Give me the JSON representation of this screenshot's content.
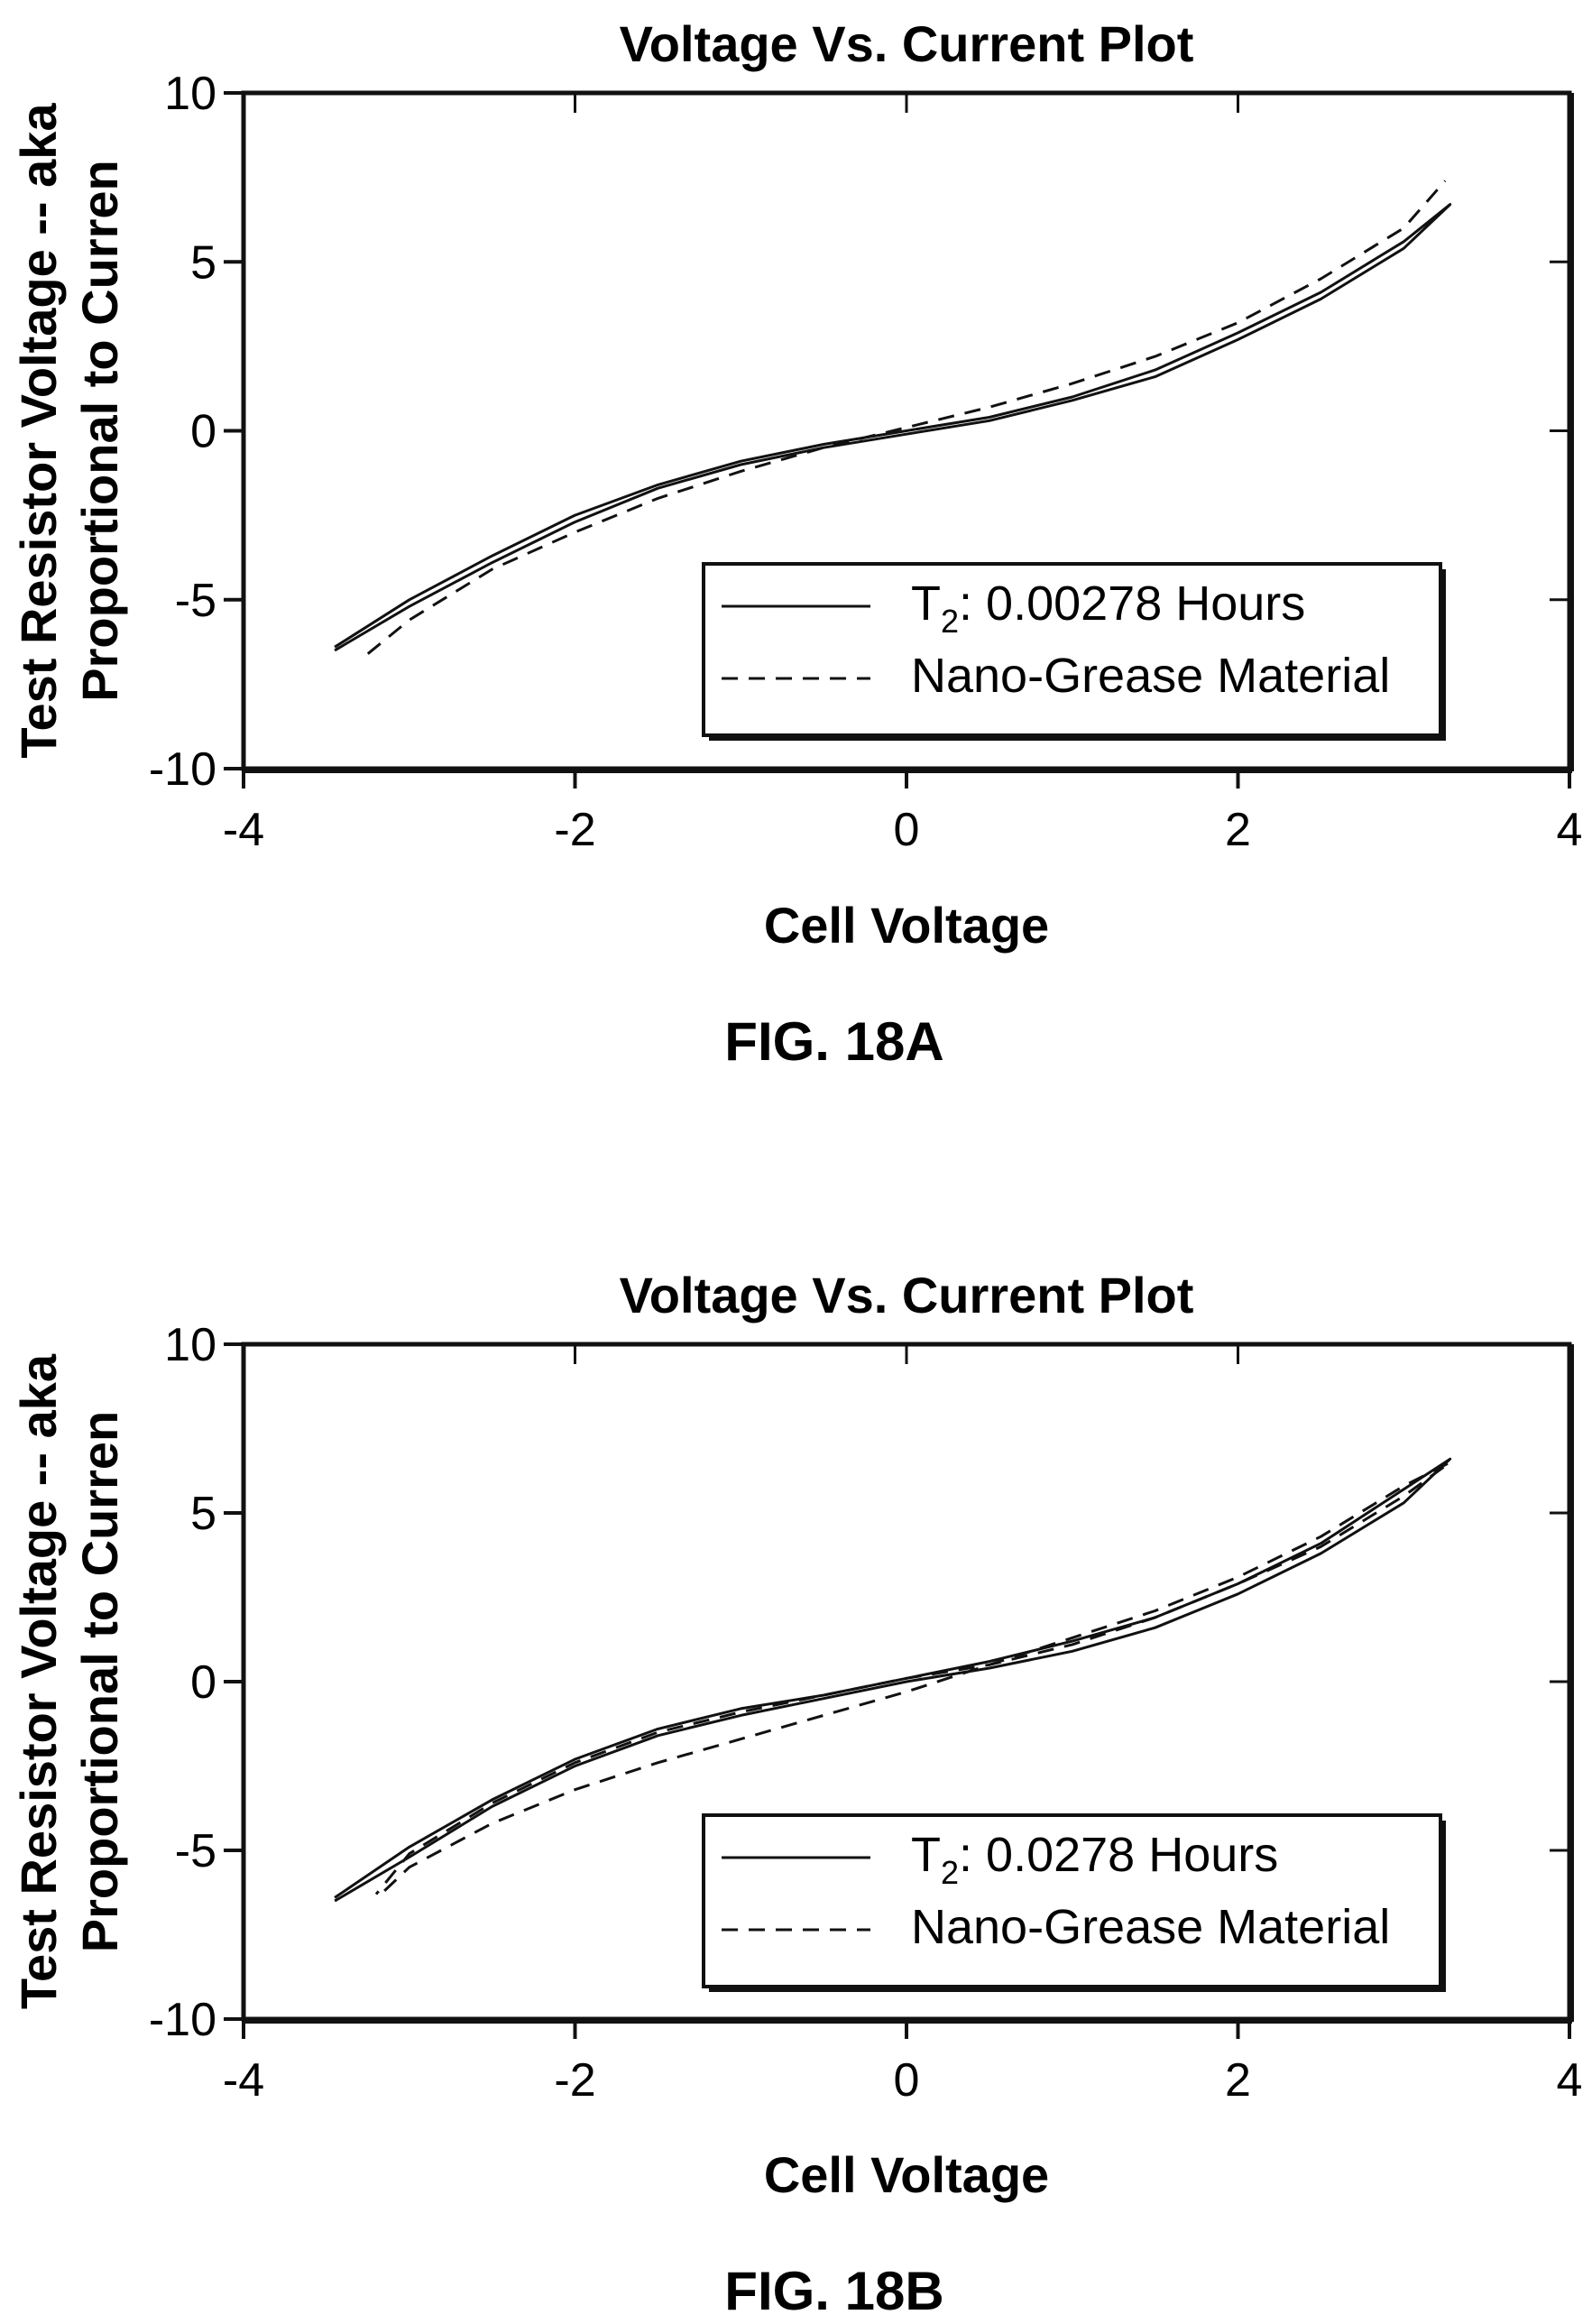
{
  "chart_data": [
    {
      "type": "line",
      "title": "Voltage Vs. Current Plot",
      "xlabel": "Cell Voltage",
      "ylabel": [
        "Test Resistor Voltage -- aka",
        "Proportional to Curren"
      ],
      "xlim": [
        -4,
        4
      ],
      "ylim": [
        -10,
        10
      ],
      "xticks": [
        -4,
        -2,
        0,
        2,
        4
      ],
      "yticks": [
        10,
        5,
        0,
        -5,
        -10
      ],
      "grid": false,
      "legend_position": "bottom-right",
      "legend_title": {
        "base": "T",
        "sub": "2",
        "rest": ": 0.00278 Hours"
      },
      "figure_label": "FIG. 18A",
      "series": [
        {
          "name": "T2: 0.00278 Hours",
          "style": "solid",
          "x": [
            -3.45,
            -3.0,
            -2.5,
            -2.0,
            -1.5,
            -1.0,
            -0.5,
            0.0,
            0.5,
            1.0,
            1.5,
            2.0,
            2.5,
            3.0,
            3.28,
            3.0,
            2.5,
            2.0,
            1.5,
            1.0,
            0.5,
            0.0,
            -0.5,
            -1.0,
            -1.5,
            -2.0,
            -2.5,
            -3.0,
            -3.45
          ],
          "y": [
            -6.4,
            -5.0,
            -3.7,
            -2.5,
            -1.6,
            -0.9,
            -0.4,
            0.0,
            0.4,
            1.0,
            1.8,
            2.9,
            4.1,
            5.6,
            6.7,
            5.4,
            3.9,
            2.7,
            1.6,
            0.9,
            0.3,
            -0.1,
            -0.5,
            -1.0,
            -1.7,
            -2.7,
            -3.9,
            -5.2,
            -6.5
          ]
        },
        {
          "name": "Nano-Grease Material",
          "style": "dashed",
          "x": [
            -3.25,
            -3.0,
            -2.5,
            -2.0,
            -1.5,
            -1.0,
            -0.5,
            0.0,
            0.5,
            1.0,
            1.5,
            2.0,
            2.5,
            3.0,
            3.25
          ],
          "y": [
            -6.6,
            -5.6,
            -4.1,
            -3.0,
            -2.0,
            -1.2,
            -0.5,
            0.1,
            0.7,
            1.4,
            2.2,
            3.2,
            4.5,
            6.0,
            7.4
          ]
        }
      ]
    },
    {
      "type": "line",
      "title": "Voltage Vs. Current Plot",
      "xlabel": "Cell Voltage",
      "ylabel": [
        "Test Resistor Voltage -- aka",
        "Proportional to Curren"
      ],
      "xlim": [
        -4,
        4
      ],
      "ylim": [
        -10,
        10
      ],
      "xticks": [
        -4,
        -2,
        0,
        2,
        4
      ],
      "yticks": [
        10,
        5,
        0,
        -5,
        -10
      ],
      "grid": false,
      "legend_position": "bottom-right",
      "legend_title": {
        "base": "T",
        "sub": "2",
        "rest": ": 0.0278 Hours"
      },
      "figure_label": "FIG. 18B",
      "series": [
        {
          "name": "T2: 0.0278 Hours",
          "style": "solid",
          "x": [
            -3.45,
            -3.0,
            -2.5,
            -2.0,
            -1.5,
            -1.0,
            -0.5,
            0.0,
            0.5,
            1.0,
            1.5,
            2.0,
            2.5,
            3.0,
            3.28,
            3.0,
            2.5,
            2.0,
            1.5,
            1.0,
            0.5,
            0.0,
            -0.5,
            -1.0,
            -1.5,
            -2.0,
            -2.5,
            -3.0,
            -3.45
          ],
          "y": [
            -6.4,
            -4.9,
            -3.5,
            -2.3,
            -1.4,
            -0.8,
            -0.4,
            0.1,
            0.6,
            1.2,
            1.9,
            2.9,
            4.1,
            5.7,
            6.6,
            5.3,
            3.8,
            2.6,
            1.6,
            0.9,
            0.4,
            0.0,
            -0.5,
            -1.0,
            -1.6,
            -2.5,
            -3.7,
            -5.2,
            -6.5
          ]
        },
        {
          "name": "Nano-Grease Material",
          "style": "dashed",
          "x": [
            -3.15,
            -3.0,
            -2.5,
            -2.0,
            -1.5,
            -1.0,
            -0.5,
            0.0,
            0.5,
            1.0,
            1.5,
            2.0,
            2.5,
            3.0,
            3.28,
            3.0,
            2.5,
            2.0,
            1.5,
            1.0,
            0.5,
            0.0,
            -0.5,
            -1.0,
            -1.5,
            -2.0,
            -2.5,
            -3.0,
            -3.2
          ],
          "y": [
            -6.2,
            -5.5,
            -4.2,
            -3.2,
            -2.4,
            -1.7,
            -1.0,
            -0.3,
            0.5,
            1.3,
            2.1,
            3.1,
            4.3,
            5.8,
            6.5,
            5.5,
            4.0,
            2.9,
            1.9,
            1.1,
            0.5,
            0.1,
            -0.4,
            -0.9,
            -1.5,
            -2.4,
            -3.6,
            -5.1,
            -6.3
          ]
        }
      ]
    }
  ]
}
